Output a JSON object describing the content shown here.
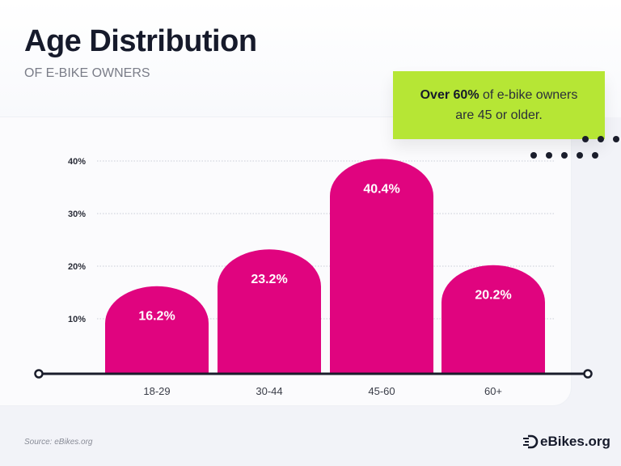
{
  "header": {
    "title": "Age Distribution",
    "subtitle": "OF E-BIKE OWNERS"
  },
  "callout": {
    "bold": "Over 60%",
    "text": " of e-bike owners are 45 or older."
  },
  "chart_data": {
    "type": "bar",
    "title": "Age Distribution",
    "subtitle": "OF E-BIKE OWNERS",
    "categories": [
      "18-29",
      "30-44",
      "45-60",
      "60+"
    ],
    "values": [
      16.2,
      23.2,
      40.4,
      20.2
    ],
    "value_labels": [
      "16.2%",
      "23.2%",
      "40.4%",
      "20.2%"
    ],
    "yticks": [
      10,
      20,
      30,
      40
    ],
    "ytick_labels": [
      "10%",
      "20%",
      "30%",
      "40%"
    ],
    "ylim": [
      0,
      40
    ],
    "grid": true,
    "bar_color": "#e0047f",
    "xlabel": "",
    "ylabel": ""
  },
  "footer": {
    "source": "Source: eBikes.org",
    "logo": "eBikes.org"
  },
  "colors": {
    "accent": "#e0047f",
    "callout": "#b6e635",
    "text": "#161a2b"
  }
}
